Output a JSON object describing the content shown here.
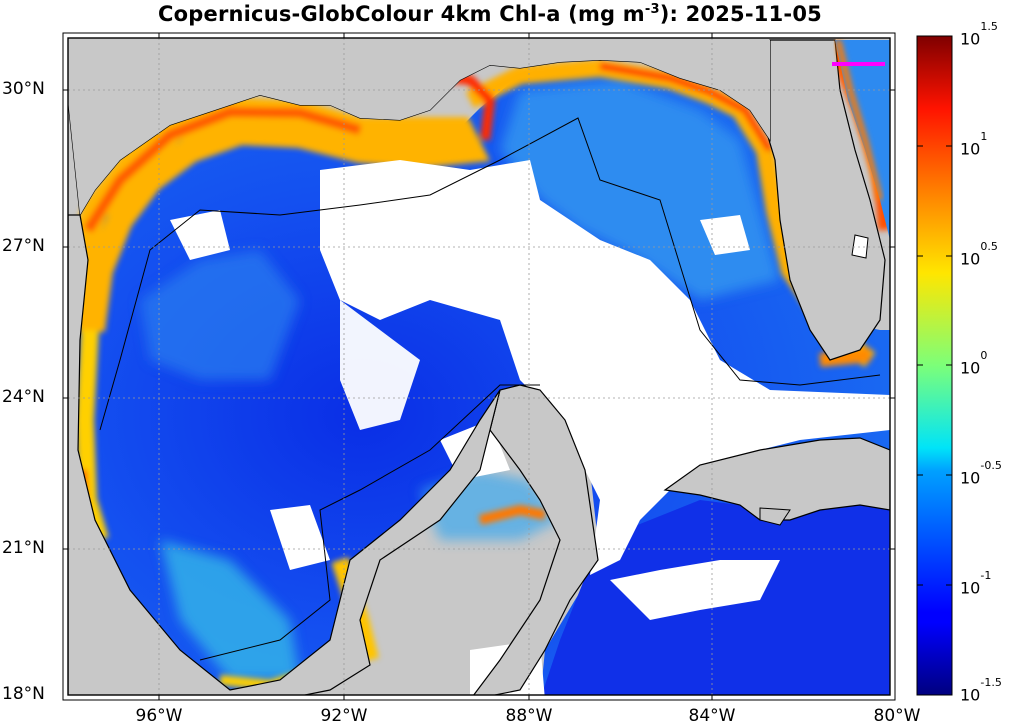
{
  "title": {
    "prefix": "Copernicus-GlobColour 4km Chl-a (mg m",
    "exponent": "-3",
    "suffix": "): 2025-11-05"
  },
  "map": {
    "lon_range": [
      -98,
      -80
    ],
    "lat_range": [
      18,
      31
    ],
    "lat_ticks": [
      {
        "value": 30,
        "label": "30°N"
      },
      {
        "value": 27,
        "label": "27°N"
      },
      {
        "value": 24,
        "label": "24°N"
      },
      {
        "value": 21,
        "label": "21°N"
      },
      {
        "value": 18,
        "label": "18°N"
      }
    ],
    "lon_ticks": [
      {
        "value": -96,
        "label": "96°W"
      },
      {
        "value": -92,
        "label": "92°W"
      },
      {
        "value": -88,
        "label": "88°W"
      },
      {
        "value": -84,
        "label": "84°W"
      },
      {
        "value": -80,
        "label": "80°W"
      }
    ],
    "colors": {
      "land": "#c8c8c8",
      "no_data": "#ffffff",
      "grid": "#9a9a9a",
      "marker": "#ff00ff"
    }
  },
  "colorbar": {
    "colormap": "jet",
    "scale": "log",
    "range": [
      -1.5,
      1.5
    ],
    "ticks": [
      {
        "base": "10",
        "exp": "1.5"
      },
      {
        "base": "10",
        "exp": "1"
      },
      {
        "base": "10",
        "exp": "0.5"
      },
      {
        "base": "10",
        "exp": "0"
      },
      {
        "base": "10",
        "exp": "-0.5"
      },
      {
        "base": "10",
        "exp": "-1"
      },
      {
        "base": "10",
        "exp": "-1.5"
      }
    ]
  }
}
